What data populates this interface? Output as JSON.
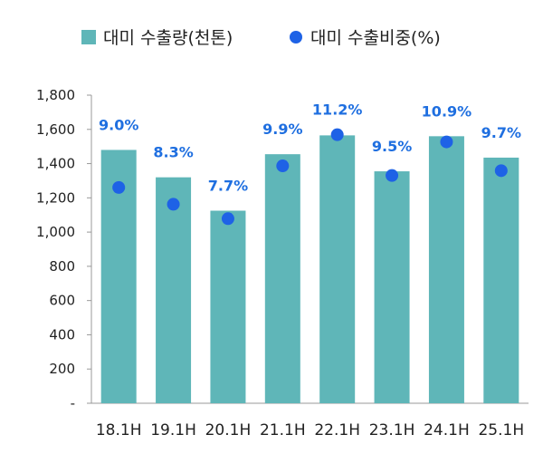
{
  "chart_data": {
    "type": "bar",
    "categories": [
      "18.1H",
      "19.1H",
      "20.1H",
      "21.1H",
      "22.1H",
      "23.1H",
      "24.1H",
      "25.1H"
    ],
    "series": [
      {
        "name": "대미 수출량(천톤)",
        "type": "bar",
        "axis": "left",
        "color": "#5fb6b8",
        "values": [
          1480,
          1320,
          1125,
          1455,
          1565,
          1355,
          1560,
          1435
        ]
      },
      {
        "name": "대미 수출비중(%)",
        "type": "scatter",
        "axis": "right",
        "color": "#1e62e6",
        "values": [
          9.0,
          8.3,
          7.7,
          9.9,
          11.2,
          9.5,
          10.9,
          9.7
        ],
        "labels": [
          "9.0%",
          "8.3%",
          "7.7%",
          "9.9%",
          "11.2%",
          "9.5%",
          "10.9%",
          "9.7%"
        ]
      }
    ],
    "ylim": [
      0,
      1800
    ],
    "yticks": [
      0,
      200,
      400,
      600,
      800,
      1000,
      1200,
      1400,
      1600,
      1800
    ],
    "ytick_labels": [
      "-",
      "200",
      "400",
      "600",
      "800",
      "1,000",
      "1,200",
      "1,400",
      "1,600",
      "1,800"
    ],
    "y2lim": [
      0,
      12.85
    ],
    "legend_position": "top",
    "grid": false
  }
}
